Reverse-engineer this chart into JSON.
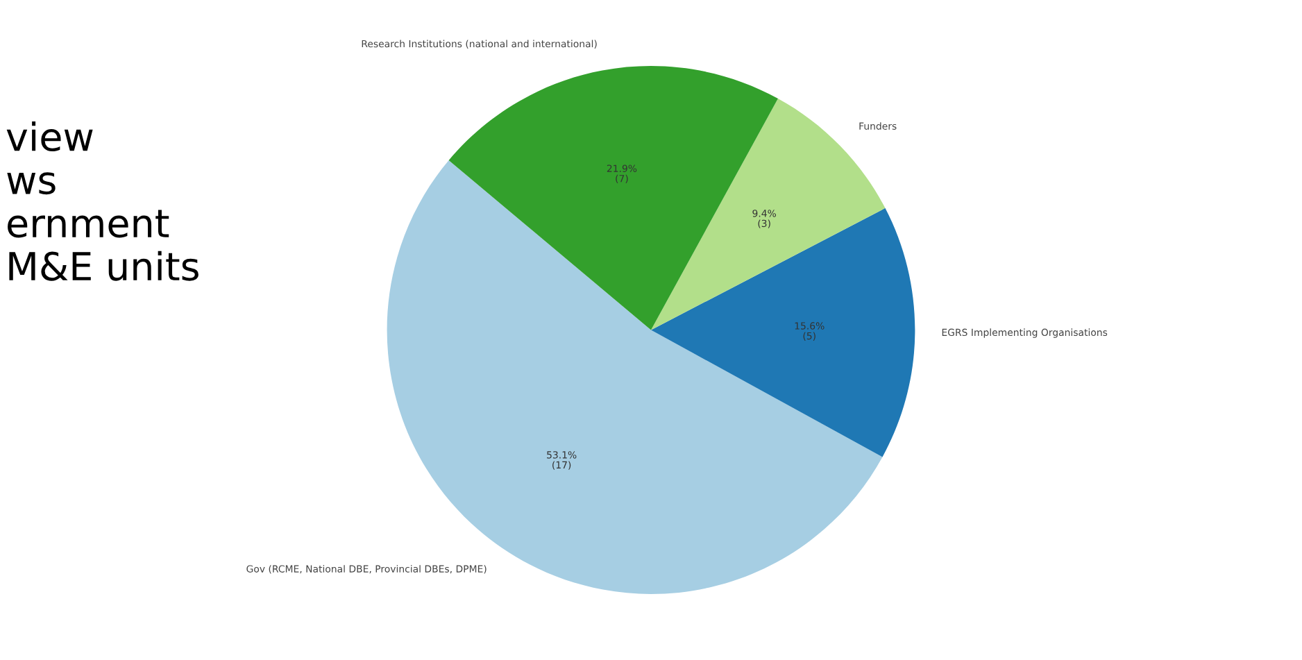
{
  "chart_data": {
    "type": "pie",
    "categories": [
      "Gov (RCME, National DBE, Provincial DBEs, DPME)",
      "EGRS Implementing Organisations",
      "Funders",
      "Research Institutions (national and international)"
    ],
    "values": [
      17,
      5,
      3,
      7
    ],
    "colors": [
      "#a6cee3",
      "#1f78b4",
      "#b2df8a",
      "#33a02c"
    ],
    "value_labels": [
      "53.1%\n(17)",
      "15.6%\n(5)",
      "9.4%\n(3)",
      "21.9%\n(7)"
    ],
    "annotations": [
      "view\nws\nernment\nM&E units"
    ]
  }
}
